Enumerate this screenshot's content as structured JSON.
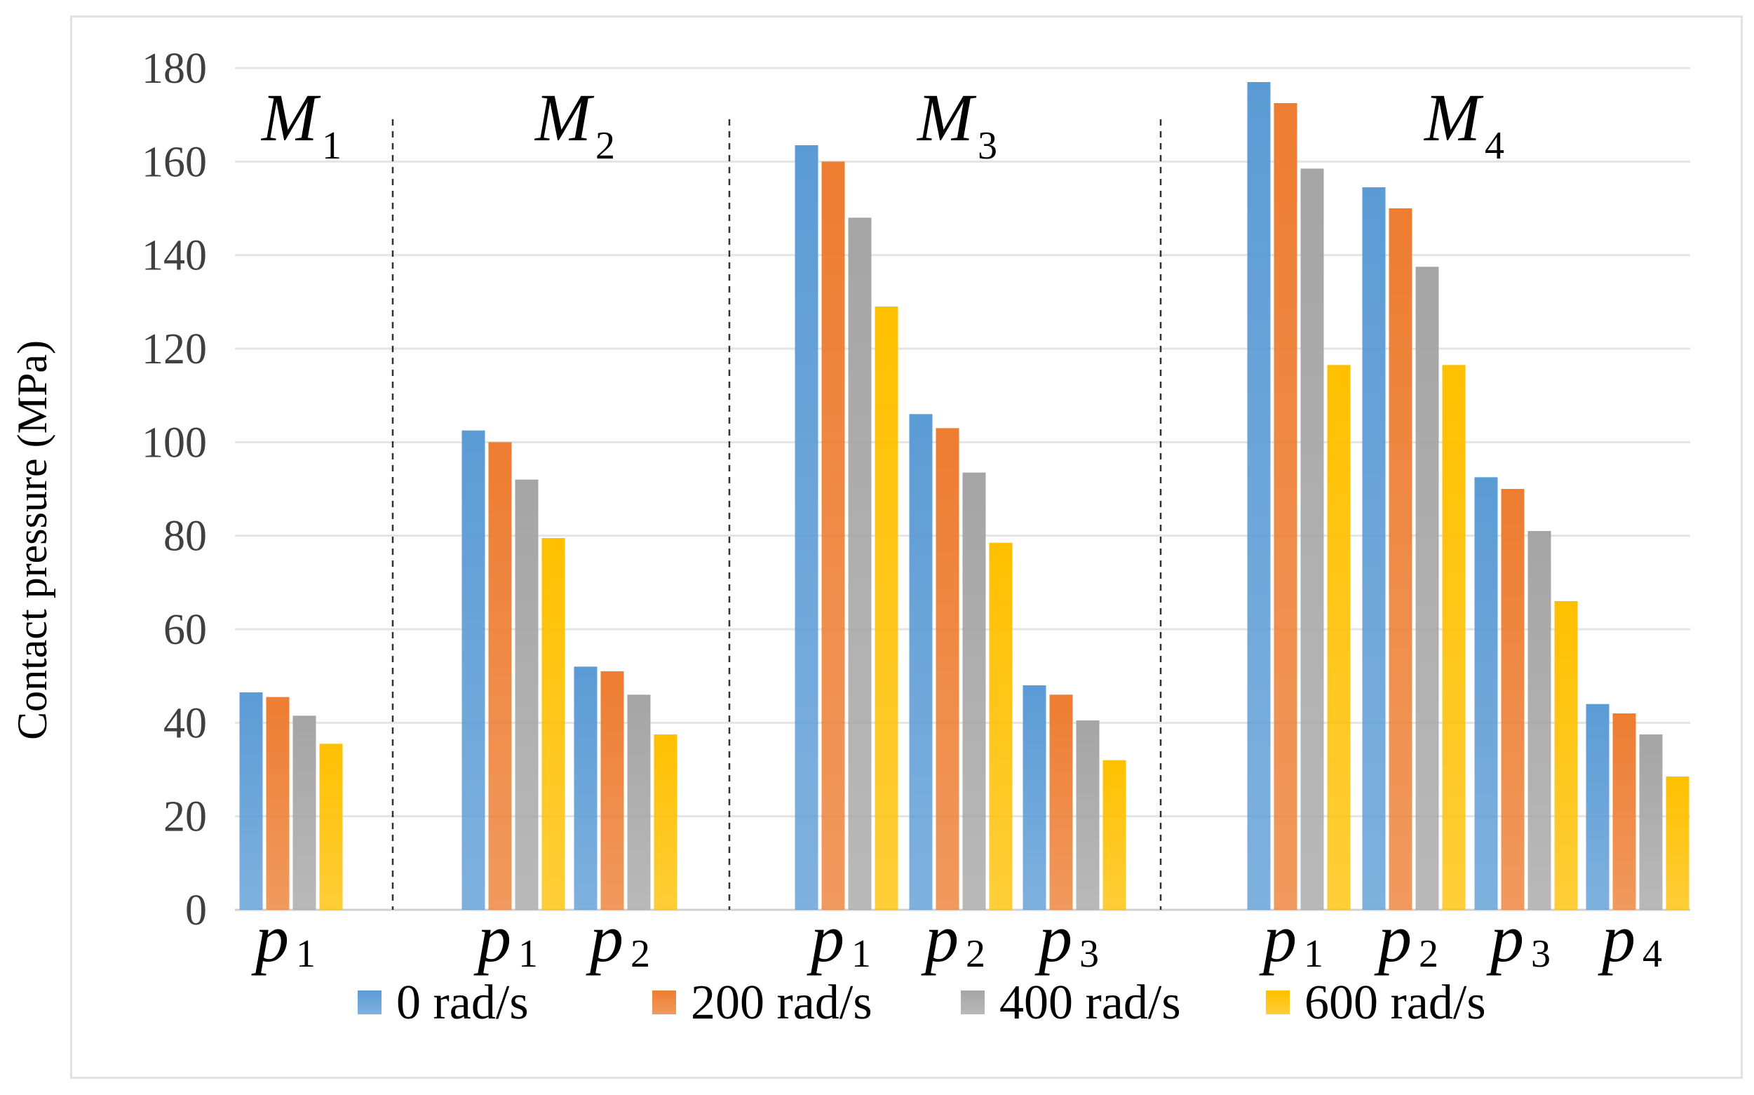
{
  "chart_data": {
    "type": "bar",
    "title": "",
    "xlabel": "",
    "ylabel": "Contact pressure  (MPa)",
    "ylim": [
      0,
      180
    ],
    "yticks": [
      0,
      20,
      40,
      60,
      80,
      100,
      120,
      140,
      160,
      180
    ],
    "grid": true,
    "legend_position": "bottom",
    "groups": [
      {
        "name": "M",
        "sub": "1",
        "categories": [
          {
            "name": "p",
            "sub": "1",
            "values": [
              46.5,
              45.5,
              41.5,
              35.5
            ]
          }
        ]
      },
      {
        "name": "M",
        "sub": "2",
        "categories": [
          {
            "name": "p",
            "sub": "1",
            "values": [
              102.5,
              100,
              92,
              79.5
            ]
          },
          {
            "name": "p",
            "sub": "2",
            "values": [
              52,
              51,
              46,
              37.5
            ]
          }
        ]
      },
      {
        "name": "M",
        "sub": "3",
        "categories": [
          {
            "name": "p",
            "sub": "1",
            "values": [
              163.5,
              160,
              148,
              129
            ]
          },
          {
            "name": "p",
            "sub": "2",
            "values": [
              106,
              103,
              93.5,
              78.5
            ]
          },
          {
            "name": "p",
            "sub": "3",
            "values": [
              48,
              46,
              40.5,
              32
            ]
          }
        ]
      },
      {
        "name": "M",
        "sub": "4",
        "categories": [
          {
            "name": "p",
            "sub": "1",
            "values": [
              177,
              172.5,
              158.5,
              116.5
            ]
          },
          {
            "name": "p",
            "sub": "2",
            "values": [
              154.5,
              150,
              137.5,
              116.5
            ]
          },
          {
            "name": "p",
            "sub": "3",
            "values": [
              92.5,
              90,
              81,
              66
            ]
          },
          {
            "name": "p",
            "sub": "4",
            "values": [
              44,
              42,
              37.5,
              28.5
            ]
          }
        ]
      }
    ],
    "series": [
      {
        "name": "0 rad/s",
        "color": "#5b9bd5"
      },
      {
        "name": "200 rad/s",
        "color": "#ed7d31"
      },
      {
        "name": "400 rad/s",
        "color": "#a5a5a5"
      },
      {
        "name": "600 rad/s",
        "color": "#ffc000"
      }
    ]
  }
}
